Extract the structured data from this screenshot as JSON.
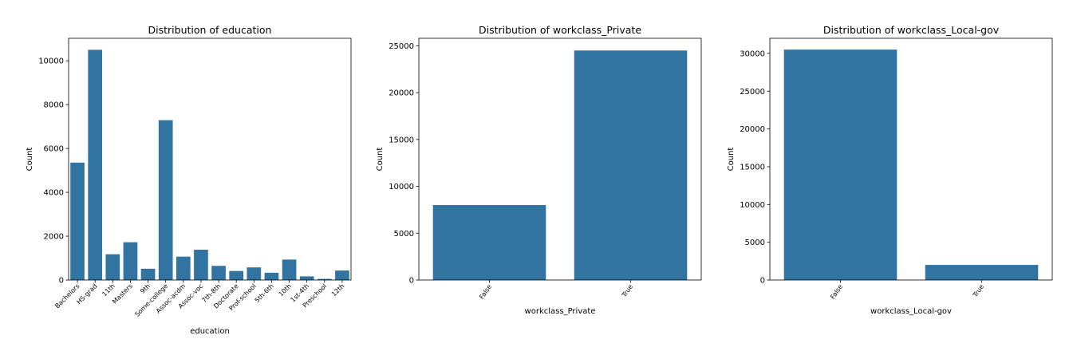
{
  "colors": {
    "bar": "#3274a1",
    "axis": "#000000",
    "background": "#ffffff"
  },
  "chart_data": [
    {
      "type": "bar",
      "title": "Distribution of education",
      "xlabel": "education",
      "ylabel": "Count",
      "categories": [
        "Bachelors",
        "HS-grad",
        "11th",
        "Masters",
        "9th",
        "Some-college",
        "Assoc-acdm",
        "Assoc-voc",
        "7th-8th",
        "Doctorate",
        "Prof-school",
        "5th-6th",
        "10th",
        "1st-4th",
        "Preschool",
        "12th"
      ],
      "values": [
        5355,
        10501,
        1175,
        1723,
        514,
        7291,
        1067,
        1382,
        646,
        413,
        576,
        333,
        933,
        168,
        51,
        433
      ],
      "ylim": [
        0,
        11026
      ],
      "yticks": [
        0,
        2000,
        4000,
        6000,
        8000,
        10000
      ],
      "grid": false,
      "legend": "none"
    },
    {
      "type": "bar",
      "title": "Distribution of workclass_Private",
      "xlabel": "workclass_Private",
      "ylabel": "Count",
      "categories": [
        "False",
        "True"
      ],
      "values": [
        8000,
        24500
      ],
      "ylim": [
        0,
        25800
      ],
      "yticks": [
        0,
        5000,
        10000,
        15000,
        20000,
        25000
      ],
      "grid": false,
      "legend": "none"
    },
    {
      "type": "bar",
      "title": "Distribution of workclass_Local-gov",
      "xlabel": "workclass_Local-gov",
      "ylabel": "Count",
      "categories": [
        "False",
        "True"
      ],
      "values": [
        30500,
        2000
      ],
      "ylim": [
        0,
        32000
      ],
      "yticks": [
        0,
        5000,
        10000,
        15000,
        20000,
        25000,
        30000
      ],
      "grid": false,
      "legend": "none"
    }
  ]
}
